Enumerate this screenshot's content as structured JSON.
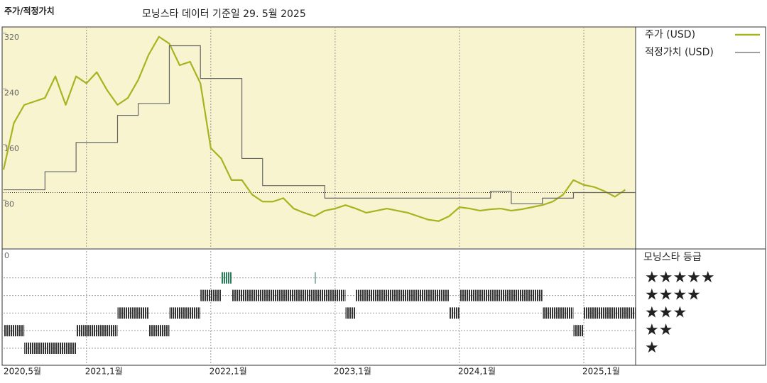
{
  "chart_data": {
    "type": "line",
    "title": "주가/적정가치",
    "subtitle": "모닝스타 데이터 기준일 29. 5월 2025",
    "x": [
      "2020-05",
      "2020-06",
      "2020-07",
      "2020-08",
      "2020-09",
      "2020-10",
      "2020-11",
      "2020-12",
      "2021-01",
      "2021-02",
      "2021-03",
      "2021-04",
      "2021-05",
      "2021-06",
      "2021-07",
      "2021-08",
      "2021-09",
      "2021-10",
      "2021-11",
      "2021-12",
      "2022-01",
      "2022-02",
      "2022-03",
      "2022-04",
      "2022-05",
      "2022-06",
      "2022-07",
      "2022-08",
      "2022-09",
      "2022-10",
      "2022-11",
      "2022-12",
      "2023-01",
      "2023-02",
      "2023-03",
      "2023-04",
      "2023-05",
      "2023-06",
      "2023-07",
      "2023-08",
      "2023-09",
      "2023-10",
      "2023-11",
      "2023-12",
      "2024-01",
      "2024-02",
      "2024-03",
      "2024-04",
      "2024-05",
      "2024-06",
      "2024-07",
      "2024-08",
      "2024-09",
      "2024-10",
      "2024-11",
      "2024-12",
      "2025-01",
      "2025-02",
      "2025-03",
      "2025-04",
      "2025-05"
    ],
    "series": [
      {
        "name": "주가 (USD)",
        "color": "#a8b320",
        "step": false,
        "values": [
          124,
          191,
          217,
          222,
          227,
          258,
          217,
          258,
          248,
          264,
          238,
          217,
          227,
          253,
          289,
          315,
          305,
          274,
          279,
          248,
          155,
          140,
          109,
          109,
          88,
          78,
          78,
          83,
          68,
          62,
          57,
          65,
          68,
          73,
          68,
          62,
          65,
          68,
          65,
          62,
          57,
          52,
          50,
          57,
          70,
          68,
          65,
          67,
          68,
          65,
          67,
          70,
          73,
          78,
          88,
          109,
          102,
          99,
          93,
          85,
          95
        ]
      },
      {
        "name": "적정가치 (USD)",
        "color": "#666666",
        "step": true,
        "values": [
          95,
          95,
          95,
          95,
          121,
          121,
          121,
          163,
          163,
          163,
          163,
          202,
          202,
          219,
          219,
          219,
          302,
          302,
          302,
          255,
          255,
          255,
          255,
          140,
          140,
          101,
          101,
          101,
          101,
          101,
          101,
          83,
          83,
          83,
          83,
          83,
          83,
          83,
          83,
          83,
          83,
          83,
          83,
          83,
          83,
          83,
          83,
          93,
          93,
          75,
          75,
          75,
          83,
          83,
          83,
          91,
          91,
          91,
          91,
          91,
          91
        ]
      }
    ],
    "reference_line": 91,
    "xlim": [
      "2020-05",
      "2025-06"
    ],
    "xticks": [
      {
        "value": "2020-05",
        "label": "2020,5월"
      },
      {
        "value": "2021-01",
        "label": "2021,1월"
      },
      {
        "value": "2022-01",
        "label": "2022,1월"
      },
      {
        "value": "2023-01",
        "label": "2023,1월"
      },
      {
        "value": "2024-01",
        "label": "2024,1월"
      },
      {
        "value": "2025-01",
        "label": "2025,1월"
      }
    ],
    "ylim": [
      11,
      329
    ],
    "yticks": [
      80,
      160,
      240,
      320
    ],
    "background": "#f7f4cf",
    "rating_title": "모닝스타 등급",
    "rating_axis_label": "0",
    "rating_rows": [
      {
        "stars": 5,
        "label": "★★★★★"
      },
      {
        "stars": 4,
        "label": "★★★★"
      },
      {
        "stars": 3,
        "label": "★★★"
      },
      {
        "stars": 2,
        "label": "★★"
      },
      {
        "stars": 1,
        "label": "★"
      }
    ],
    "rating_colors": {
      "5": "#2e7d5b",
      "4": "#333333",
      "3": "#333333",
      "2": "#333333",
      "1": "#333333"
    },
    "ratings": [
      {
        "start": "2020-05",
        "end": "2020-07",
        "stars": 2
      },
      {
        "start": "2020-07",
        "end": "2020-12",
        "stars": 1
      },
      {
        "start": "2020-12",
        "end": "2021-04",
        "stars": 2
      },
      {
        "start": "2021-04",
        "end": "2021-07",
        "stars": 3
      },
      {
        "start": "2021-07",
        "end": "2021-09",
        "stars": 2
      },
      {
        "start": "2021-09",
        "end": "2021-12",
        "stars": 3
      },
      {
        "start": "2021-12",
        "end": "2022-02",
        "stars": 4
      },
      {
        "start": "2022-02",
        "end": "2022-03",
        "stars": 5
      },
      {
        "start": "2022-03",
        "end": "2023-02",
        "stars": 4
      },
      {
        "start": "2022-11",
        "end": "2022-11",
        "stars": 5
      },
      {
        "start": "2023-02",
        "end": "2023-03",
        "stars": 3
      },
      {
        "start": "2023-03",
        "end": "2023-12",
        "stars": 4
      },
      {
        "start": "2023-12",
        "end": "2024-01",
        "stars": 3
      },
      {
        "start": "2024-01",
        "end": "2024-09",
        "stars": 4
      },
      {
        "start": "2024-09",
        "end": "2024-12",
        "stars": 3
      },
      {
        "start": "2024-12",
        "end": "2025-01",
        "stars": 2
      },
      {
        "start": "2025-01",
        "end": "2025-06",
        "stars": 3
      }
    ]
  }
}
